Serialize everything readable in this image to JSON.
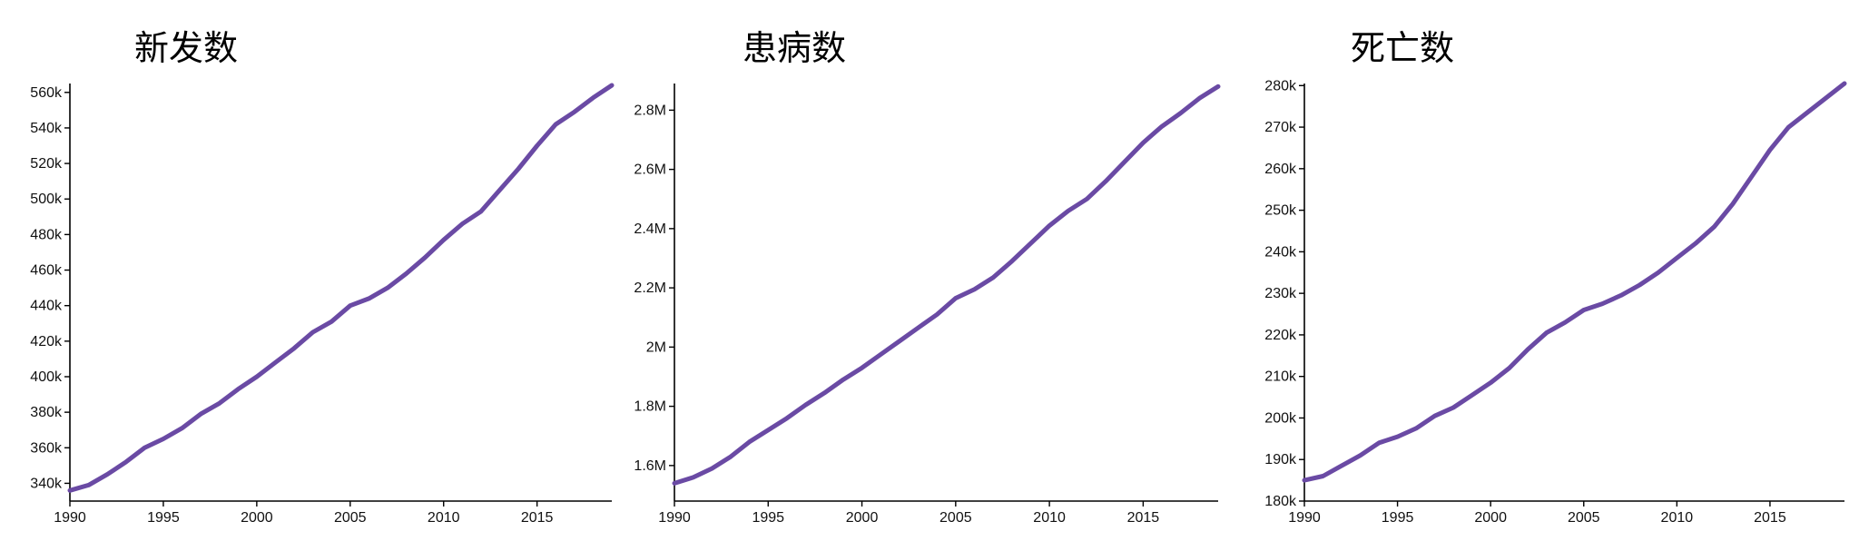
{
  "colors": {
    "series": "#6a4aa4",
    "axis": "#000000"
  },
  "chart_data": [
    {
      "type": "line",
      "title": "新发数",
      "x": [
        1990,
        1991,
        1992,
        1993,
        1994,
        1995,
        1996,
        1997,
        1998,
        1999,
        2000,
        2001,
        2002,
        2003,
        2004,
        2005,
        2006,
        2007,
        2008,
        2009,
        2010,
        2011,
        2012,
        2013,
        2014,
        2015,
        2016,
        2017,
        2018,
        2019
      ],
      "values": [
        336000,
        339000,
        345000,
        352000,
        360000,
        365000,
        371000,
        379000,
        385000,
        393000,
        400000,
        408000,
        416000,
        425000,
        431000,
        440000,
        444000,
        450000,
        458000,
        467000,
        477000,
        486000,
        493000,
        505000,
        517000,
        530000,
        542000,
        549000,
        557000,
        564000
      ],
      "xlim": [
        1990,
        2019
      ],
      "ylim": [
        330000,
        565000
      ],
      "xticks": [
        1990,
        1995,
        2000,
        2005,
        2010,
        2015
      ],
      "xtick_labels": [
        "1990",
        "1995",
        "2000",
        "2005",
        "2010",
        "2015"
      ],
      "yticks": [
        340000,
        360000,
        380000,
        400000,
        420000,
        440000,
        460000,
        480000,
        500000,
        520000,
        540000,
        560000
      ],
      "ytick_labels": [
        "340k",
        "360k",
        "380k",
        "400k",
        "420k",
        "440k",
        "460k",
        "480k",
        "500k",
        "520k",
        "540k",
        "560k"
      ],
      "grid": false,
      "legend": "none"
    },
    {
      "type": "line",
      "title": "患病数",
      "x": [
        1990,
        1991,
        1992,
        1993,
        1994,
        1995,
        1996,
        1997,
        1998,
        1999,
        2000,
        2001,
        2002,
        2003,
        2004,
        2005,
        2006,
        2007,
        2008,
        2009,
        2010,
        2011,
        2012,
        2013,
        2014,
        2015,
        2016,
        2017,
        2018,
        2019
      ],
      "values": [
        1540000,
        1560000,
        1590000,
        1630000,
        1680000,
        1720000,
        1760000,
        1805000,
        1845000,
        1890000,
        1930000,
        1975000,
        2020000,
        2065000,
        2110000,
        2165000,
        2195000,
        2235000,
        2290000,
        2350000,
        2410000,
        2460000,
        2500000,
        2560000,
        2625000,
        2690000,
        2745000,
        2790000,
        2840000,
        2880000
      ],
      "xlim": [
        1990,
        2019
      ],
      "ylim": [
        1480000,
        2890000
      ],
      "xticks": [
        1990,
        1995,
        2000,
        2005,
        2010,
        2015
      ],
      "xtick_labels": [
        "1990",
        "1995",
        "2000",
        "2005",
        "2010",
        "2015"
      ],
      "yticks": [
        1600000,
        1800000,
        2000000,
        2200000,
        2400000,
        2600000,
        2800000
      ],
      "ytick_labels": [
        "1.6M",
        "1.8M",
        "2M",
        "2.2M",
        "2.4M",
        "2.6M",
        "2.8M"
      ],
      "grid": false,
      "legend": "none"
    },
    {
      "type": "line",
      "title": "死亡数",
      "x": [
        1990,
        1991,
        1992,
        1993,
        1994,
        1995,
        1996,
        1997,
        1998,
        1999,
        2000,
        2001,
        2002,
        2003,
        2004,
        2005,
        2006,
        2007,
        2008,
        2009,
        2010,
        2011,
        2012,
        2013,
        2014,
        2015,
        2016,
        2017,
        2018,
        2019
      ],
      "values": [
        185000,
        186000,
        188500,
        191000,
        194000,
        195500,
        197500,
        200500,
        202500,
        205500,
        208500,
        212000,
        216500,
        220500,
        223000,
        226000,
        227500,
        229500,
        232000,
        235000,
        238500,
        242000,
        246000,
        251500,
        258000,
        264500,
        270000,
        273500,
        277000,
        280500
      ],
      "xlim": [
        1990,
        2019
      ],
      "ylim": [
        180000,
        280500
      ],
      "xticks": [
        1990,
        1995,
        2000,
        2005,
        2010,
        2015
      ],
      "xtick_labels": [
        "1990",
        "1995",
        "2000",
        "2005",
        "2010",
        "2015"
      ],
      "yticks": [
        180000,
        190000,
        200000,
        210000,
        220000,
        230000,
        240000,
        250000,
        260000,
        270000,
        280000
      ],
      "ytick_labels": [
        "180k",
        "190k",
        "200k",
        "210k",
        "220k",
        "230k",
        "240k",
        "250k",
        "260k",
        "270k",
        "280k"
      ],
      "grid": false,
      "legend": "none"
    }
  ]
}
